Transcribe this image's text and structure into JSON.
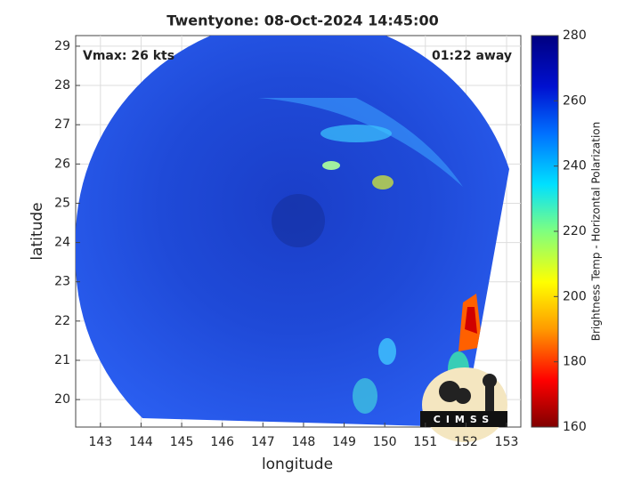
{
  "map": {
    "title": "Twentyone: 08-Oct-2024 14:45:00",
    "annotation_left": "Vmax: 26 kts",
    "annotation_right": "01:22 away",
    "xlabel": "longitude",
    "ylabel": "latitude",
    "xlim": [
      142.39,
      153.35
    ],
    "ylim": [
      19.3,
      29.27
    ],
    "xticks": [
      143,
      144,
      145,
      146,
      147,
      148,
      149,
      150,
      151,
      152,
      153
    ],
    "yticks": [
      20,
      21,
      22,
      23,
      24,
      25,
      26,
      27,
      28,
      29
    ],
    "grid": true,
    "colorbar": {
      "label": "Brightness Temp - Horizontal Polarization",
      "clim": [
        160,
        280
      ],
      "ticks": [
        160,
        180,
        200,
        220,
        240,
        260,
        280
      ]
    },
    "logo": "CIMSS"
  }
}
